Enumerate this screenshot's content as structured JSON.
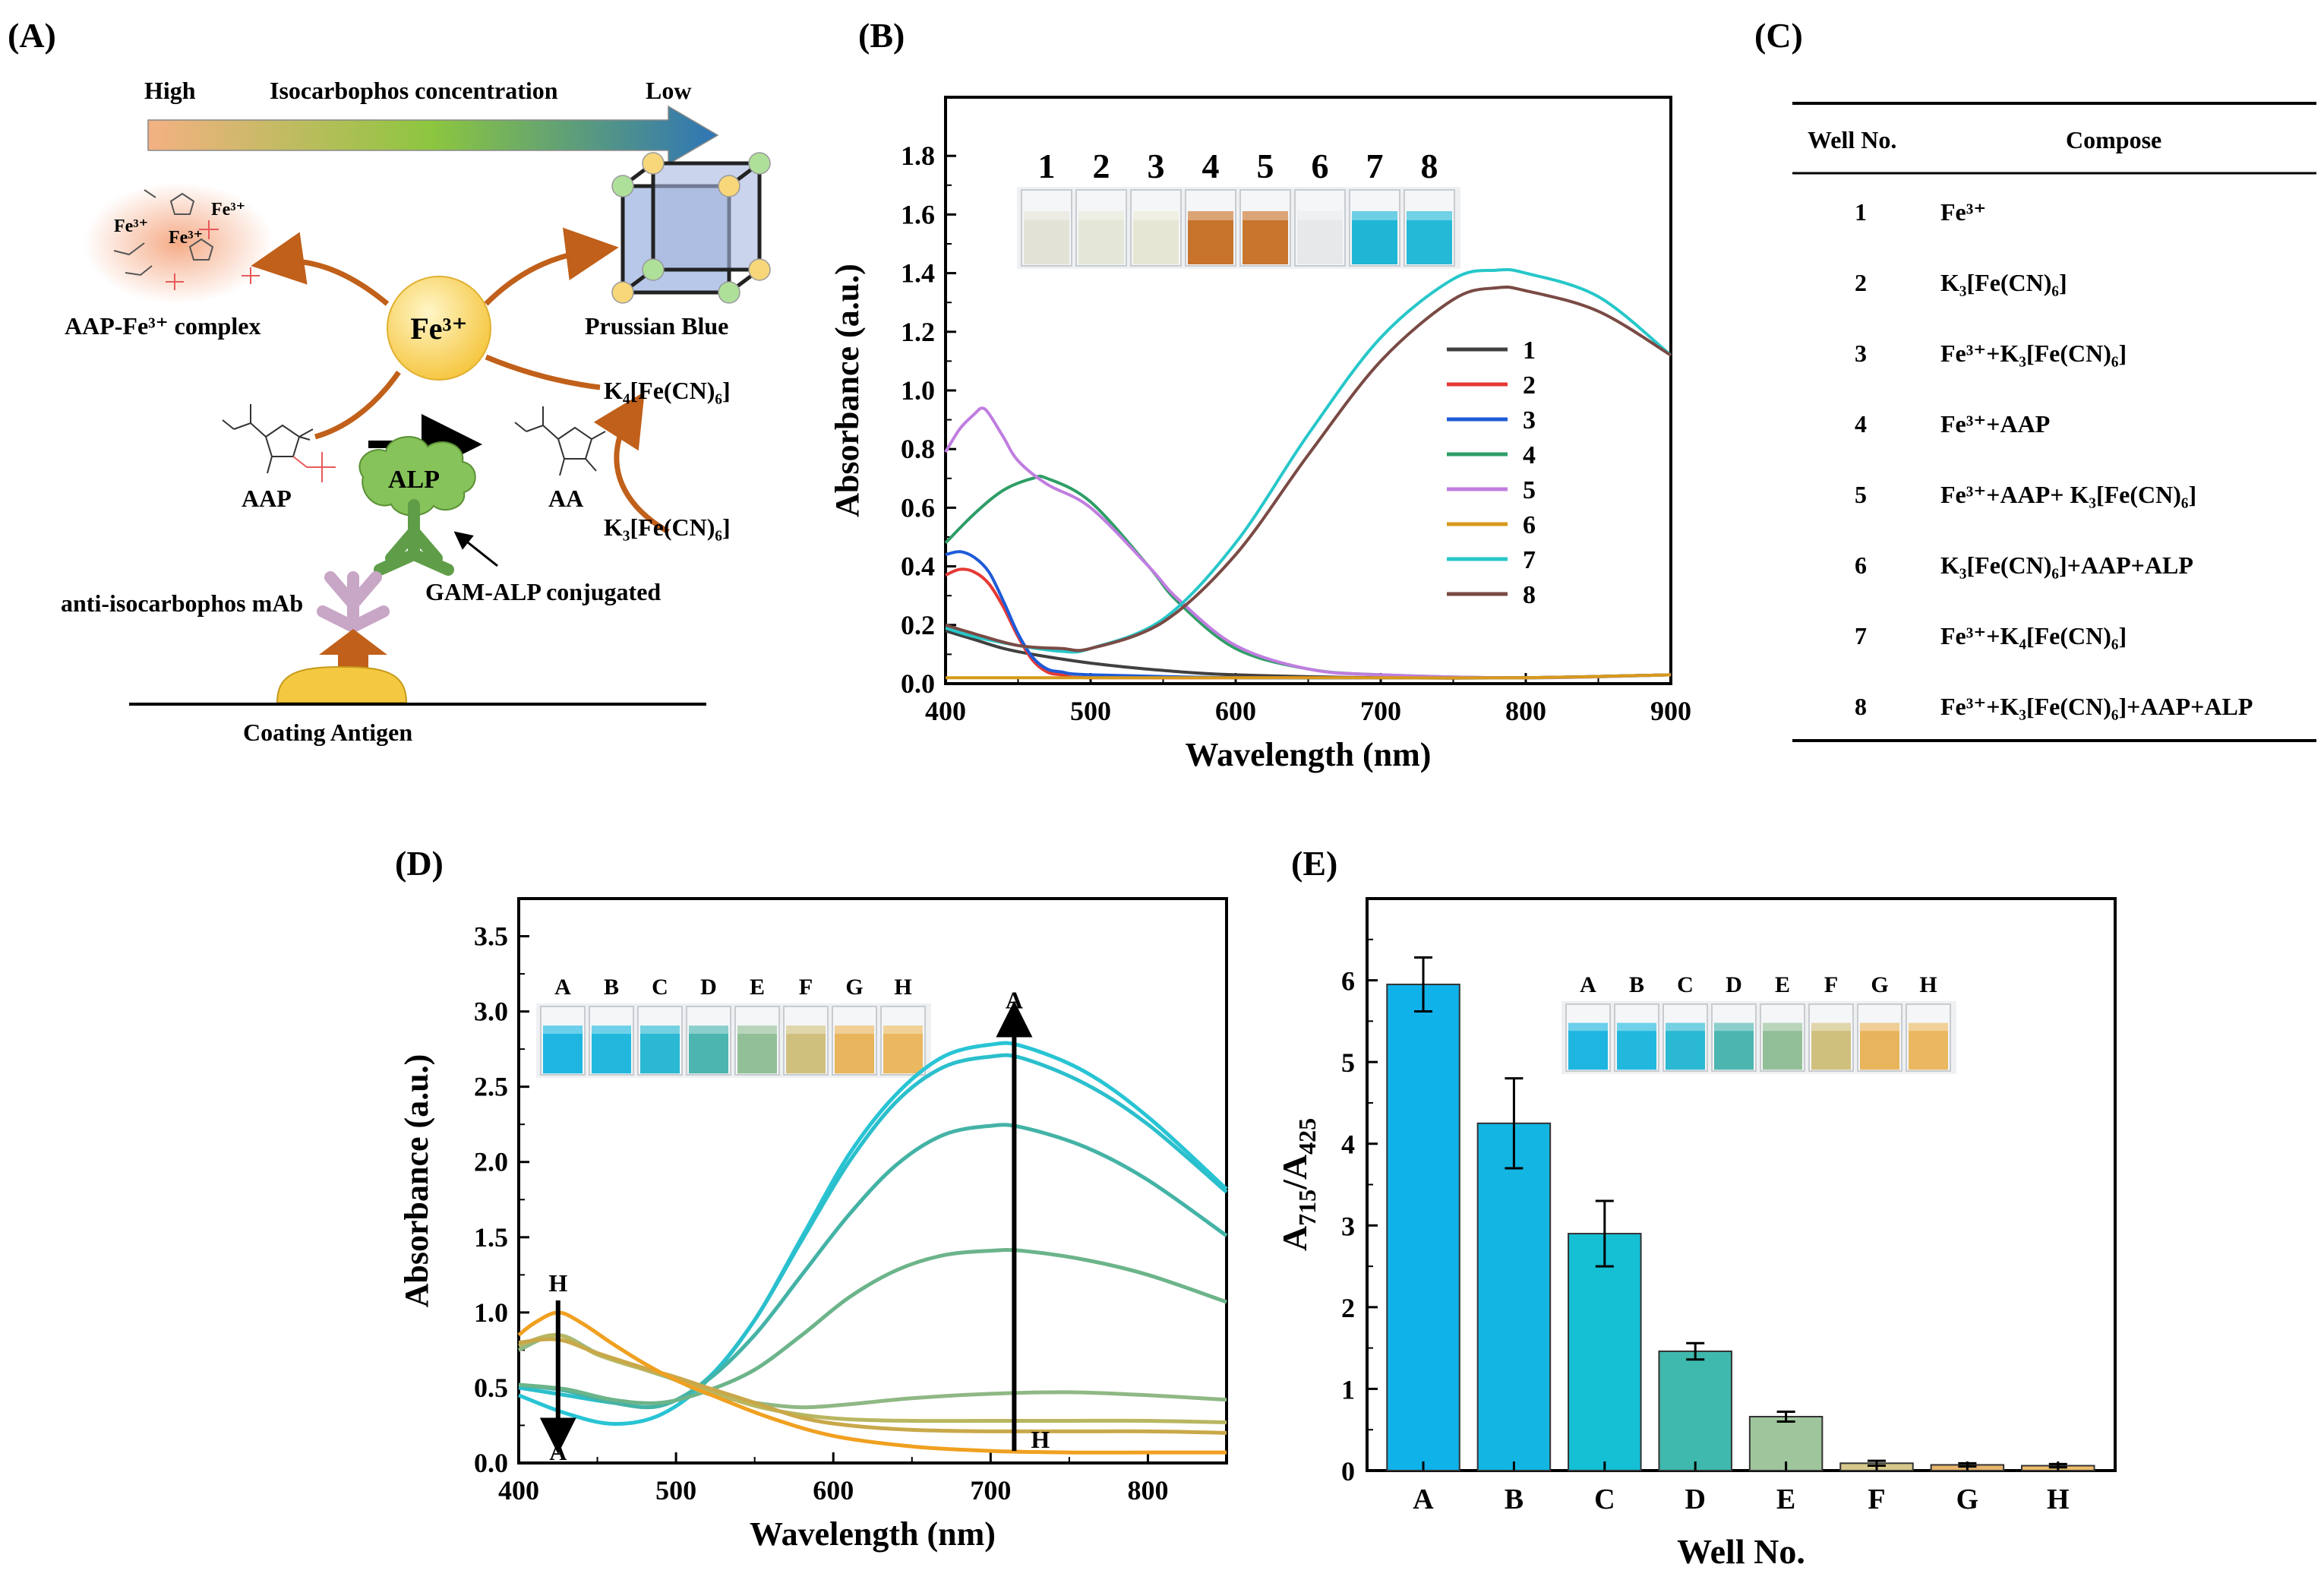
{
  "panels": {
    "A": {
      "label": "(A)",
      "gradient_high": "High",
      "gradient_title": "Isocarbophos concentration",
      "gradient_low": "Low",
      "fe_center": "Fe³⁺",
      "complex_label": "AAP-Fe³⁺ complex",
      "complex_fe": [
        "Fe³⁺",
        "Fe³⁺",
        "Fe³⁺"
      ],
      "pb_label": "Prussian Blue",
      "k4": "K₄[Fe(CN)₆]",
      "k3": "K₃[Fe(CN)₆]",
      "alp": "ALP",
      "aap": "AAP",
      "aa": "AA",
      "gam": "GAM-ALP conjugated",
      "mab": "anti-isocarbophos mAb",
      "coating": "Coating Antigen",
      "colors": {
        "arrow": "#c0601a",
        "sphere": "#f7cd4d",
        "alp": "#86c35a",
        "antibody_green": "#5f9d49",
        "antibody_pink": "#c8a6c6",
        "cube": "#9fb4dc",
        "gradient_start": "#f4b183",
        "gradient_mid": "#8cc63f",
        "gradient_end": "#2e75b6"
      }
    },
    "B": {
      "label": "(B)",
      "vial_labels": [
        "1",
        "2",
        "3",
        "4",
        "5",
        "6",
        "7",
        "8"
      ],
      "vial_colors": [
        "#e2e2d6",
        "#e4e6d8",
        "#e6e6d4",
        "#c8732c",
        "#c8762e",
        "#e6e8ea",
        "#1fb6d6",
        "#25b9d8"
      ]
    },
    "C": {
      "label": "(C)",
      "headers": [
        "Well No.",
        "Compose"
      ],
      "rows": [
        [
          "1",
          "Fe³⁺"
        ],
        [
          "2",
          "K₃[Fe(CN)₆]"
        ],
        [
          "3",
          "Fe³⁺+K₃[Fe(CN)₆]"
        ],
        [
          "4",
          "Fe³⁺+AAP"
        ],
        [
          "5",
          "Fe³⁺+AAP+ K₃[Fe(CN)₆]"
        ],
        [
          "6",
          "K₃[Fe(CN)₆]+AAP+ALP"
        ],
        [
          "7",
          "Fe³⁺+K₄[Fe(CN)₆]"
        ],
        [
          "8",
          "Fe³⁺+K₃[Fe(CN)₆]+AAP+ALP"
        ]
      ]
    },
    "D": {
      "label": "(D)",
      "vial_labels": [
        "A",
        "B",
        "C",
        "D",
        "E",
        "F",
        "G",
        "H"
      ],
      "vial_colors": [
        "#1eb6e0",
        "#22b8de",
        "#2ab8d2",
        "#4cb5b0",
        "#93bf98",
        "#d0c07e",
        "#e8b45c",
        "#eab860"
      ],
      "arrow_top": "A",
      "arrow_bottom": "H",
      "arrow2_top": "H",
      "arrow2_bottom": "A"
    },
    "E": {
      "label": "(E)",
      "vial_labels": [
        "A",
        "B",
        "C",
        "D",
        "E",
        "F",
        "G",
        "H"
      ],
      "vial_colors": [
        "#1eb6e0",
        "#22b8de",
        "#2ab8d2",
        "#4cb5b0",
        "#93bf98",
        "#d0c07e",
        "#e8b45c",
        "#eab860"
      ]
    }
  },
  "chart_data": [
    {
      "panel": "B",
      "type": "line",
      "xlabel": "Wavelength (nm)",
      "ylabel": "Absorbance (a.u.)",
      "xlim": [
        400,
        900
      ],
      "ylim": [
        0,
        2.0
      ],
      "xticks": [
        400,
        500,
        600,
        700,
        800,
        900
      ],
      "yticks": [
        0.0,
        0.2,
        0.4,
        0.6,
        0.8,
        1.0,
        1.2,
        1.4,
        1.6,
        1.8
      ],
      "ytick_labels": [
        "0.0",
        "0.2",
        "0.4",
        "0.6",
        "0.8",
        "1.0",
        "1.2",
        "1.4",
        "1.6",
        "1.8"
      ],
      "legend_position": "right",
      "series": [
        {
          "name": "1",
          "color": "#404040",
          "x": [
            400,
            420,
            440,
            460,
            500,
            550,
            600,
            700,
            800,
            900
          ],
          "y": [
            0.18,
            0.15,
            0.12,
            0.1,
            0.07,
            0.045,
            0.03,
            0.02,
            0.02,
            0.03
          ]
        },
        {
          "name": "2",
          "color": "#e53935",
          "x": [
            400,
            410,
            420,
            430,
            440,
            450,
            460,
            470,
            480,
            500,
            600,
            700,
            800,
            900
          ],
          "y": [
            0.37,
            0.39,
            0.38,
            0.34,
            0.26,
            0.16,
            0.08,
            0.04,
            0.03,
            0.02,
            0.02,
            0.02,
            0.02,
            0.03
          ]
        },
        {
          "name": "3",
          "color": "#1e5bd8",
          "x": [
            400,
            410,
            420,
            430,
            440,
            450,
            460,
            470,
            480,
            500,
            600,
            700,
            800,
            900
          ],
          "y": [
            0.44,
            0.45,
            0.43,
            0.38,
            0.28,
            0.17,
            0.09,
            0.05,
            0.04,
            0.03,
            0.02,
            0.02,
            0.02,
            0.03
          ]
        },
        {
          "name": "4",
          "color": "#2e9e66",
          "x": [
            400,
            420,
            440,
            460,
            470,
            500,
            540,
            560,
            600,
            650,
            700,
            800,
            900
          ],
          "y": [
            0.48,
            0.58,
            0.66,
            0.7,
            0.7,
            0.62,
            0.4,
            0.28,
            0.12,
            0.05,
            0.03,
            0.02,
            0.03
          ]
        },
        {
          "name": "5",
          "color": "#c07de0",
          "x": [
            400,
            410,
            420,
            425,
            430,
            440,
            450,
            470,
            500,
            540,
            560,
            600,
            650,
            700,
            800,
            900
          ],
          "y": [
            0.79,
            0.87,
            0.92,
            0.94,
            0.92,
            0.84,
            0.76,
            0.68,
            0.6,
            0.4,
            0.29,
            0.13,
            0.05,
            0.03,
            0.02,
            0.03
          ]
        },
        {
          "name": "6",
          "color": "#d79a1a",
          "x": [
            400,
            500,
            600,
            700,
            800,
            900
          ],
          "y": [
            0.02,
            0.02,
            0.02,
            0.02,
            0.02,
            0.03
          ]
        },
        {
          "name": "7",
          "color": "#27c7c9",
          "x": [
            400,
            420,
            450,
            480,
            500,
            550,
            600,
            650,
            700,
            750,
            780,
            800,
            850,
            900
          ],
          "y": [
            0.19,
            0.16,
            0.13,
            0.11,
            0.12,
            0.22,
            0.48,
            0.85,
            1.18,
            1.38,
            1.41,
            1.4,
            1.32,
            1.12
          ]
        },
        {
          "name": "8",
          "color": "#7a4a44",
          "x": [
            400,
            420,
            450,
            480,
            500,
            550,
            600,
            650,
            700,
            750,
            780,
            800,
            850,
            900
          ],
          "y": [
            0.2,
            0.17,
            0.13,
            0.12,
            0.12,
            0.21,
            0.44,
            0.78,
            1.1,
            1.31,
            1.35,
            1.34,
            1.27,
            1.12
          ]
        }
      ]
    },
    {
      "panel": "D",
      "type": "line",
      "xlabel": "Wavelength (nm)",
      "ylabel": "Absorbance (a.u.)",
      "xlim": [
        400,
        850
      ],
      "ylim": [
        0,
        3.75
      ],
      "xticks": [
        400,
        500,
        600,
        700,
        800
      ],
      "yticks": [
        0.0,
        0.5,
        1.0,
        1.5,
        2.0,
        2.5,
        3.0,
        3.5
      ],
      "ytick_labels": [
        "0.0",
        "0.5",
        "1.0",
        "1.5",
        "2.0",
        "2.5",
        "3.0",
        "3.5"
      ],
      "series": [
        {
          "name": "A",
          "color": "#28c4d4",
          "x": [
            400,
            430,
            460,
            490,
            520,
            550,
            580,
            610,
            640,
            670,
            700,
            720,
            760,
            800,
            850
          ],
          "y": [
            0.45,
            0.33,
            0.26,
            0.32,
            0.55,
            0.95,
            1.5,
            2.05,
            2.45,
            2.7,
            2.78,
            2.77,
            2.6,
            2.3,
            1.82
          ]
        },
        {
          "name": "B",
          "color": "#2bbfcc",
          "x": [
            400,
            430,
            460,
            490,
            520,
            550,
            580,
            610,
            640,
            670,
            700,
            720,
            760,
            800,
            850
          ],
          "y": [
            0.5,
            0.45,
            0.4,
            0.38,
            0.56,
            0.95,
            1.48,
            2.0,
            2.4,
            2.63,
            2.7,
            2.69,
            2.52,
            2.25,
            1.8
          ]
        },
        {
          "name": "C",
          "color": "#44b3a6",
          "x": [
            400,
            430,
            460,
            490,
            520,
            550,
            580,
            610,
            640,
            670,
            700,
            720,
            760,
            800,
            850
          ],
          "y": [
            0.52,
            0.48,
            0.4,
            0.38,
            0.55,
            0.85,
            1.25,
            1.65,
            1.98,
            2.18,
            2.24,
            2.23,
            2.1,
            1.88,
            1.51
          ]
        },
        {
          "name": "D",
          "color": "#6cb48a",
          "x": [
            400,
            430,
            460,
            490,
            520,
            550,
            580,
            610,
            640,
            670,
            700,
            720,
            760,
            800,
            850
          ],
          "y": [
            0.52,
            0.49,
            0.42,
            0.4,
            0.48,
            0.62,
            0.85,
            1.1,
            1.28,
            1.38,
            1.41,
            1.41,
            1.35,
            1.25,
            1.07
          ]
        },
        {
          "name": "E",
          "color": "#8fb884",
          "x": [
            400,
            425,
            450,
            480,
            500,
            520,
            550,
            580,
            610,
            650,
            700,
            750,
            800,
            850
          ],
          "y": [
            0.75,
            0.85,
            0.73,
            0.62,
            0.55,
            0.46,
            0.4,
            0.37,
            0.39,
            0.43,
            0.46,
            0.47,
            0.45,
            0.42
          ]
        },
        {
          "name": "F",
          "color": "#b8b660",
          "x": [
            400,
            425,
            450,
            480,
            500,
            520,
            550,
            580,
            610,
            650,
            700,
            750,
            800,
            850
          ],
          "y": [
            0.78,
            0.85,
            0.72,
            0.62,
            0.56,
            0.48,
            0.38,
            0.32,
            0.29,
            0.28,
            0.28,
            0.28,
            0.28,
            0.27
          ]
        },
        {
          "name": "G",
          "color": "#c9a84a",
          "x": [
            400,
            425,
            450,
            480,
            500,
            520,
            550,
            580,
            610,
            650,
            700,
            750,
            800,
            850
          ],
          "y": [
            0.8,
            0.82,
            0.73,
            0.63,
            0.57,
            0.5,
            0.4,
            0.3,
            0.25,
            0.22,
            0.21,
            0.21,
            0.21,
            0.2
          ]
        },
        {
          "name": "H",
          "color": "#f0a020",
          "x": [
            400,
            410,
            425,
            440,
            460,
            480,
            500,
            530,
            560,
            600,
            650,
            700,
            750,
            800,
            850
          ],
          "y": [
            0.85,
            0.93,
            1.0,
            0.93,
            0.79,
            0.66,
            0.55,
            0.42,
            0.3,
            0.18,
            0.11,
            0.08,
            0.07,
            0.07,
            0.07
          ]
        }
      ]
    },
    {
      "panel": "E",
      "type": "bar",
      "xlabel": "Well No.",
      "ylabel": "A715/A425",
      "categories": [
        "A",
        "B",
        "C",
        "D",
        "E",
        "F",
        "G",
        "H"
      ],
      "values": [
        5.95,
        4.25,
        2.9,
        1.46,
        0.66,
        0.09,
        0.07,
        0.06
      ],
      "errors": [
        0.33,
        0.55,
        0.4,
        0.1,
        0.06,
        0.03,
        0.02,
        0.02
      ],
      "colors": [
        "#10b2ea",
        "#13b6e2",
        "#15bfd4",
        "#3fb8ae",
        "#9ec59c",
        "#d6c88a",
        "#e8b46e",
        "#eebd6c"
      ],
      "ylim": [
        0,
        7
      ],
      "yticks": [
        0,
        1,
        2,
        3,
        4,
        5,
        6
      ]
    }
  ]
}
